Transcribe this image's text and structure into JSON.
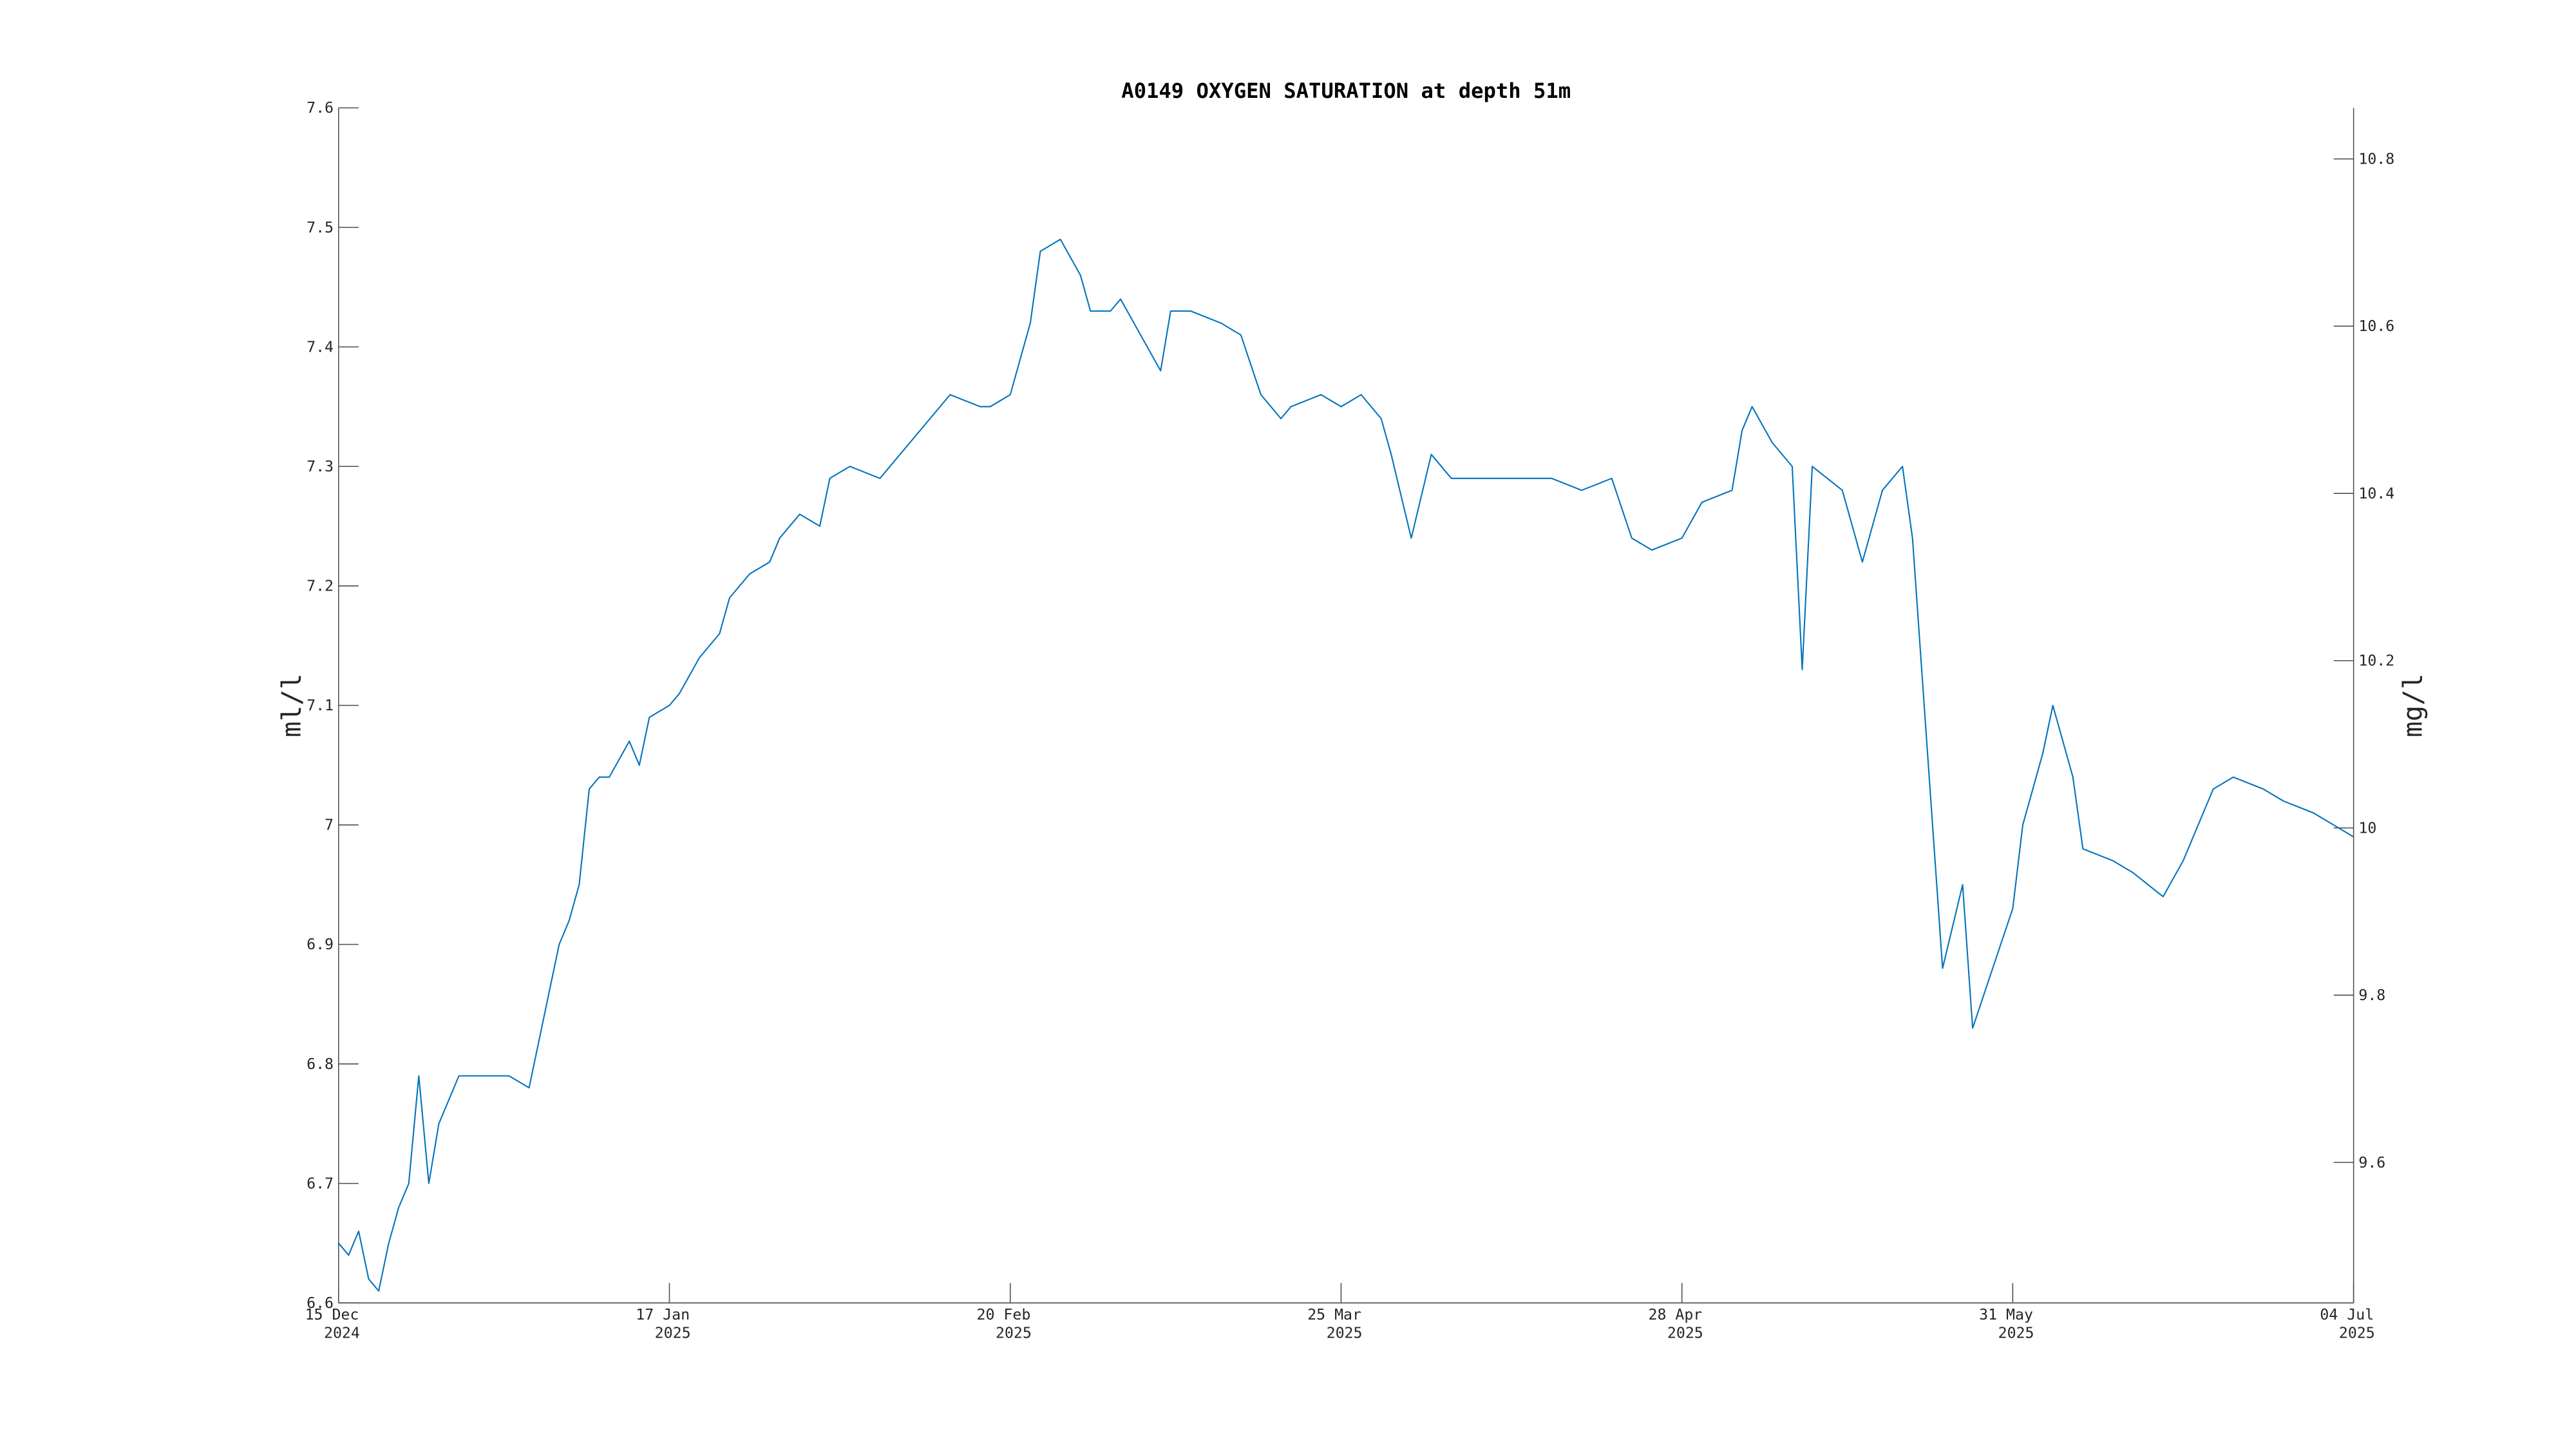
{
  "chart_data": {
    "type": "line",
    "title": "A0149 OXYGEN SATURATION at depth 51m",
    "ylabel": "ml/l",
    "y2label": "mg/l",
    "color": "#0072bd",
    "xlim": [
      "2024-12-15",
      "2025-07-04"
    ],
    "xticks": [
      {
        "value": "2024-12-15",
        "label": [
          "15 Dec",
          "2024"
        ]
      },
      {
        "value": "2025-01-17",
        "label": [
          "17 Jan",
          "2025"
        ]
      },
      {
        "value": "2025-02-20",
        "label": [
          "20 Feb",
          "2025"
        ]
      },
      {
        "value": "2025-03-25",
        "label": [
          "25 Mar",
          "2025"
        ]
      },
      {
        "value": "2025-04-28",
        "label": [
          "28 Apr",
          "2025"
        ]
      },
      {
        "value": "2025-05-31",
        "label": [
          "31 May",
          "2025"
        ]
      },
      {
        "value": "2025-07-04",
        "label": [
          "04 Jul",
          "2025"
        ]
      }
    ],
    "ylim": [
      6.6,
      7.6
    ],
    "yticks": [
      6.6,
      6.7,
      6.8,
      6.9,
      7,
      7.1,
      7.2,
      7.3,
      7.4,
      7.5,
      7.6
    ],
    "y2lim": [
      9.432,
      10.861
    ],
    "y2ticks": [
      9.6,
      9.8,
      10,
      10.2,
      10.4,
      10.6,
      10.8
    ],
    "x": [
      "2024-12-15",
      "2024-12-16",
      "2024-12-17",
      "2024-12-18",
      "2024-12-19",
      "2024-12-20",
      "2024-12-21",
      "2024-12-22",
      "2024-12-23",
      "2024-12-24",
      "2024-12-25",
      "2024-12-26",
      "2024-12-27",
      "2024-12-29",
      "2024-12-31",
      "2025-01-01",
      "2025-01-03",
      "2025-01-04",
      "2025-01-05",
      "2025-01-06",
      "2025-01-07",
      "2025-01-08",
      "2025-01-09",
      "2025-01-10",
      "2025-01-11",
      "2025-01-13",
      "2025-01-14",
      "2025-01-15",
      "2025-01-17",
      "2025-01-18",
      "2025-01-20",
      "2025-01-22",
      "2025-01-23",
      "2025-01-25",
      "2025-01-27",
      "2025-01-28",
      "2025-01-30",
      "2025-02-01",
      "2025-02-02",
      "2025-02-04",
      "2025-02-07",
      "2025-02-09",
      "2025-02-12",
      "2025-02-14",
      "2025-02-17",
      "2025-02-18",
      "2025-02-20",
      "2025-02-22",
      "2025-02-23",
      "2025-02-25",
      "2025-02-27",
      "2025-02-28",
      "2025-03-02",
      "2025-03-03",
      "2025-03-05",
      "2025-03-07",
      "2025-03-08",
      "2025-03-10",
      "2025-03-13",
      "2025-03-15",
      "2025-03-17",
      "2025-03-19",
      "2025-03-20",
      "2025-03-23",
      "2025-03-25",
      "2025-03-27",
      "2025-03-29",
      "2025-03-30",
      "2025-04-01",
      "2025-04-03",
      "2025-04-05",
      "2025-04-08",
      "2025-04-12",
      "2025-04-15",
      "2025-04-18",
      "2025-04-21",
      "2025-04-23",
      "2025-04-25",
      "2025-04-28",
      "2025-04-30",
      "2025-05-03",
      "2025-05-04",
      "2025-05-05",
      "2025-05-07",
      "2025-05-09",
      "2025-05-10",
      "2025-05-11",
      "2025-05-14",
      "2025-05-16",
      "2025-05-18",
      "2025-05-20",
      "2025-05-21",
      "2025-05-23",
      "2025-05-24",
      "2025-05-26",
      "2025-05-27",
      "2025-05-29",
      "2025-05-31",
      "2025-06-01",
      "2025-06-03",
      "2025-06-04",
      "2025-06-06",
      "2025-06-07",
      "2025-06-10",
      "2025-06-12",
      "2025-06-15",
      "2025-06-17",
      "2025-06-20",
      "2025-06-22",
      "2025-06-25",
      "2025-06-27",
      "2025-06-30",
      "2025-07-04"
    ],
    "values": [
      6.65,
      6.64,
      6.66,
      6.62,
      6.61,
      6.65,
      6.68,
      6.7,
      6.79,
      6.7,
      6.75,
      6.77,
      6.79,
      6.79,
      6.79,
      6.79,
      6.78,
      6.82,
      6.86,
      6.9,
      6.92,
      6.95,
      7.03,
      7.04,
      7.04,
      7.07,
      7.05,
      7.09,
      7.1,
      7.11,
      7.14,
      7.16,
      7.19,
      7.21,
      7.22,
      7.24,
      7.26,
      7.25,
      7.29,
      7.3,
      7.29,
      7.31,
      7.34,
      7.36,
      7.35,
      7.35,
      7.36,
      7.42,
      7.48,
      7.49,
      7.46,
      7.43,
      7.43,
      7.44,
      7.41,
      7.38,
      7.43,
      7.43,
      7.42,
      7.41,
      7.36,
      7.34,
      7.35,
      7.36,
      7.35,
      7.36,
      7.34,
      7.31,
      7.24,
      7.31,
      7.29,
      7.29,
      7.29,
      7.29,
      7.28,
      7.29,
      7.24,
      7.23,
      7.24,
      7.27,
      7.28,
      7.33,
      7.35,
      7.32,
      7.3,
      7.13,
      7.3,
      7.28,
      7.22,
      7.28,
      7.3,
      7.24,
      7,
      6.88,
      6.95,
      6.83,
      6.88,
      6.93,
      7,
      7.06,
      7.1,
      7.04,
      6.98,
      6.97,
      6.96,
      6.94,
      6.97,
      7.03,
      7.04,
      7.03,
      7.02,
      7.01,
      6.99
    ]
  }
}
